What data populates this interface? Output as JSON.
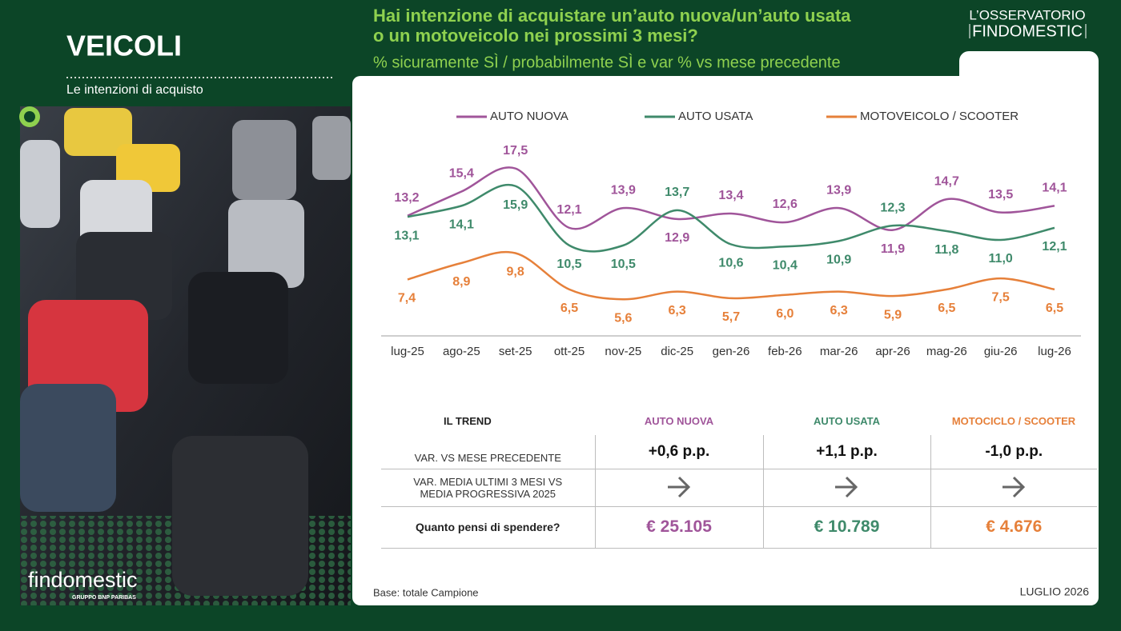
{
  "header": {
    "section": "VEICOLI",
    "subtitle": "Le intenzioni di acquisto",
    "question": [
      "Hai intenzione di acquistare un’auto nuova/un’auto usata",
      "o un motoveicolo nei prossimi 3 mesi?"
    ],
    "metric": "% sicuramente SÌ / probabilmente SÌ e var % vs mese precedente",
    "brand": [
      "L’OSSERVATORIO",
      "FINDOMESTIC"
    ]
  },
  "chart_data": {
    "type": "line",
    "categories": [
      "lug-25",
      "ago-25",
      "set-25",
      "ott-25",
      "nov-25",
      "dic-25",
      "gen-26",
      "feb-26",
      "mar-26",
      "apr-26",
      "mag-26",
      "giu-26",
      "lug-26"
    ],
    "series": [
      {
        "name": "AUTO NUOVA",
        "color": "#a0559a",
        "values": [
          13.2,
          15.4,
          17.5,
          12.1,
          13.9,
          12.9,
          13.4,
          12.6,
          13.9,
          11.9,
          14.7,
          13.5,
          14.1
        ],
        "value_labels": [
          "13,2",
          "15,4",
          "17,5",
          "12,1",
          "13,9",
          "12,9",
          "13,4",
          "12,6",
          "13,9",
          "11,9",
          "14,7",
          "13,5",
          "14,1"
        ]
      },
      {
        "name": "AUTO USATA",
        "color": "#3f8a6b",
        "values": [
          13.1,
          14.1,
          15.9,
          10.5,
          10.5,
          13.7,
          10.6,
          10.4,
          10.9,
          12.3,
          11.8,
          11.0,
          12.1
        ],
        "value_labels": [
          "13,1",
          "14,1",
          "15,9",
          "10,5",
          "10,5",
          "13,7",
          "10,6",
          "10,4",
          "10,9",
          "12,3",
          "11,8",
          "11,0",
          "12,1"
        ]
      },
      {
        "name": "MOTOVEICOLO / SCOOTER",
        "color": "#e6803a",
        "values": [
          7.4,
          8.9,
          9.8,
          6.5,
          5.6,
          6.3,
          5.7,
          6.0,
          6.3,
          5.9,
          6.5,
          7.5,
          6.5
        ],
        "value_labels": [
          "7,4",
          "8,9",
          "9,8",
          "6,5",
          "5,6",
          "6,3",
          "5,7",
          "6,0",
          "6,3",
          "5,9",
          "6,5",
          "7,5",
          "6,5"
        ]
      }
    ],
    "ylim": [
      3,
      19
    ]
  },
  "trend": {
    "headers": [
      "IL TREND",
      "AUTO NUOVA",
      "AUTO USATA",
      "MOTOCICLO / SCOOTER"
    ],
    "rows": [
      [
        "VAR. VS MESE PRECEDENTE",
        "+0,6 p.p.",
        "+1,1 p.p.",
        "-1,0 p.p."
      ],
      [
        "VAR.  MEDIA ULTIMI 3 MESI VS MEDIA PROGRESSIVA  2025"
      ],
      [
        "Quanto pensi di spendere?",
        "€ 25.105",
        "€ 10.789",
        "€ 4.676"
      ]
    ]
  },
  "footer": {
    "base": "Base: totale Campione",
    "date": "LUGLIO 2026",
    "logo": "findomestic",
    "group": "GRUPPO BNP PARIBAS"
  }
}
